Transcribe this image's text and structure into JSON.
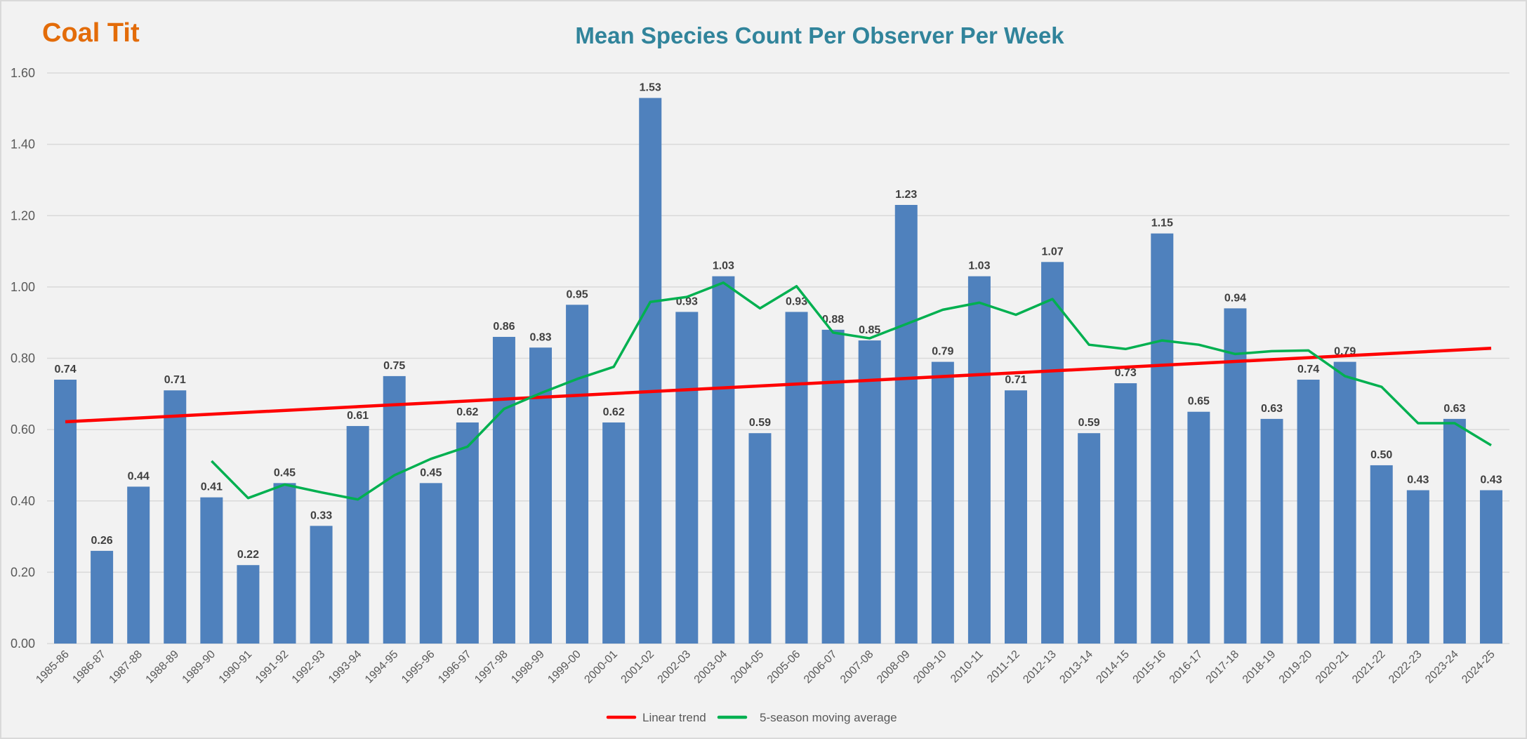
{
  "chart_data": {
    "type": "bar",
    "species": "Coal Tit",
    "title": "Mean Species Count Per Observer Per Week",
    "xlabel": "",
    "ylabel": "",
    "ylim": [
      0,
      1.6
    ],
    "yticks": [
      "0.00",
      "0.20",
      "0.40",
      "0.60",
      "0.80",
      "1.00",
      "1.20",
      "1.40",
      "1.60"
    ],
    "grid": true,
    "legend_position": "bottom",
    "categories": [
      "1985-86",
      "1986-87",
      "1987-88",
      "1988-89",
      "1989-90",
      "1990-91",
      "1991-92",
      "1992-93",
      "1993-94",
      "1994-95",
      "1995-96",
      "1996-97",
      "1997-98",
      "1998-99",
      "1999-00",
      "2000-01",
      "2001-02",
      "2002-03",
      "2003-04",
      "2004-05",
      "2005-06",
      "2006-07",
      "2007-08",
      "2008-09",
      "2009-10",
      "2010-11",
      "2011-12",
      "2012-13",
      "2013-14",
      "2014-15",
      "2015-16",
      "2016-17",
      "2017-18",
      "2018-19",
      "2019-20",
      "2020-21",
      "2021-22",
      "2022-23",
      "2023-24",
      "2024-25"
    ],
    "values": [
      0.74,
      0.26,
      0.44,
      0.71,
      0.41,
      0.22,
      0.45,
      0.33,
      0.61,
      0.75,
      0.45,
      0.62,
      0.86,
      0.83,
      0.95,
      0.62,
      1.53,
      0.93,
      1.03,
      0.59,
      0.93,
      0.88,
      0.85,
      1.23,
      0.79,
      1.03,
      0.71,
      1.07,
      0.59,
      0.73,
      1.15,
      0.65,
      0.94,
      0.63,
      0.74,
      0.79,
      0.5,
      0.43,
      0.63,
      0.43
    ],
    "series": [
      {
        "name": "Linear trend",
        "color": "#ff0000",
        "start": 0.622,
        "end": 0.828
      },
      {
        "name": "5-season moving average",
        "color": "#00b050",
        "values": [
          null,
          null,
          null,
          null,
          0.512,
          0.408,
          0.446,
          0.424,
          0.404,
          0.472,
          0.518,
          0.552,
          0.658,
          0.702,
          0.742,
          0.776,
          0.958,
          0.972,
          1.012,
          0.94,
          1.002,
          0.872,
          0.856,
          0.896,
          0.936,
          0.956,
          0.922,
          0.966,
          0.838,
          0.826,
          0.85,
          0.838,
          0.812,
          0.82,
          0.822,
          0.75,
          0.72,
          0.618,
          0.618,
          0.556
        ]
      }
    ],
    "bar_color": "#4f81bd"
  }
}
